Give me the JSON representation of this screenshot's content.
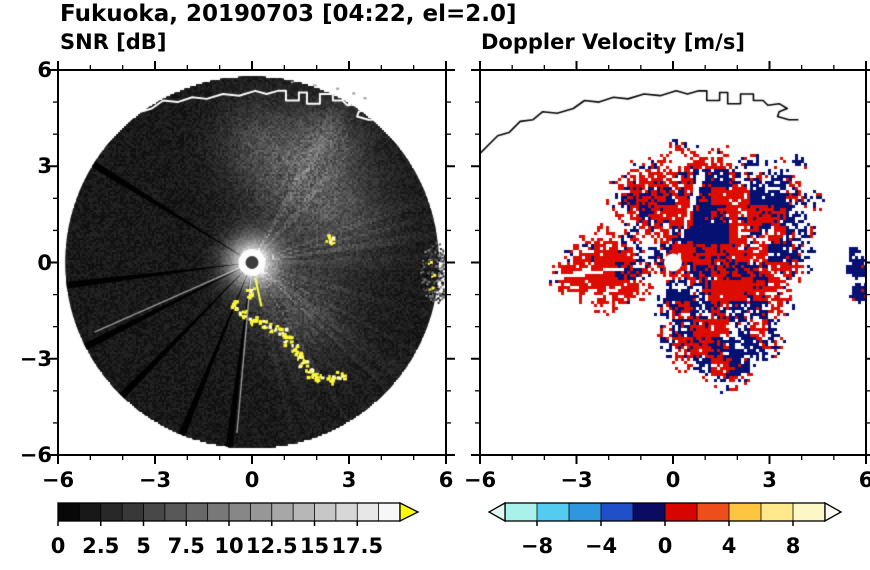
{
  "header": {
    "title": "Fukuoka, 20190703 [04:22, el=2.0]"
  },
  "panels": {
    "snr": {
      "title": "SNR [dB]",
      "x_ticks": {
        "values": [
          -6,
          -3,
          0,
          3,
          6
        ],
        "labels": [
          "−6",
          "−3",
          "0",
          "3",
          "6"
        ]
      },
      "y_ticks": {
        "values": [
          6,
          3,
          0,
          -3,
          -6
        ],
        "labels": [
          "6",
          "3",
          "0",
          "−3",
          "−6"
        ]
      }
    },
    "vel": {
      "title": "Doppler Velocity [m/s]",
      "x_ticks": {
        "values": [
          -6,
          -3,
          0,
          3,
          6
        ],
        "labels": [
          "−6",
          "−3",
          "0",
          "3",
          "6"
        ]
      },
      "y_ticks": {
        "values": [
          6,
          3,
          0,
          -3,
          -6
        ],
        "labels": []
      }
    }
  },
  "colorbars": {
    "snr": {
      "min": 0,
      "max": 20,
      "segments": 16,
      "ticks": {
        "values": [
          0,
          2.5,
          5,
          7.5,
          10,
          12.5,
          15,
          17.5
        ],
        "labels": [
          "0",
          "2.5",
          "5",
          "7.5",
          "10",
          "12.5",
          "15",
          "17.5"
        ]
      },
      "colormap": "grayscale",
      "over_arrow_color": "#ffff00"
    },
    "vel": {
      "min": -10,
      "max": 10,
      "ticks": {
        "values": [
          -8,
          -4,
          0,
          4,
          8
        ],
        "labels": [
          "−8",
          "−4",
          "0",
          "4",
          "8"
        ]
      },
      "segment_colors": [
        "#a9f2ec",
        "#54ccf2",
        "#2f96e0",
        "#2050c8",
        "#0b0b64",
        "#d80400",
        "#ee4e1a",
        "#ffc53e",
        "#ffe98a",
        "#fdf7c8"
      ],
      "under_arrow_color": "#dffaf4",
      "over_arrow_color": "#fffef6"
    }
  },
  "chart_data": [
    {
      "type": "heatmap",
      "title": "SNR [dB]",
      "xlim": [
        -6,
        6
      ],
      "ylim": [
        -6,
        6
      ],
      "x_ticks": [
        -6,
        -3,
        0,
        3,
        6
      ],
      "y_ticks": [
        -6,
        -3,
        0,
        3,
        6
      ],
      "units": "axes in tens of km from radar; SNR in dB",
      "colorbar": {
        "min": 0,
        "max": 20,
        "tick_values": [
          0,
          2.5,
          5,
          7.5,
          10,
          12.5,
          15,
          17.5
        ],
        "colormap": "black-to-white grayscale with yellow overflow arrow"
      },
      "features": [
        "dark PPI scan disc of radius ~5.8 centred on the radar",
        "diffuse bright echo cloud to the NE and E of the radar",
        "bright white core at the radar location with small gray centre dot",
        "dark radial beam-blockage spokes toward the W, SW and S",
        "yellow high-SNR clutter arc SSE of the radar",
        "white coastline overlay across the top of the disc",
        "gray speckle patch with yellow specks at the eastern disc rim"
      ],
      "render": {
        "radius": 5.8,
        "spokes_deg": [
          148,
          187,
          207,
          226,
          248,
          263
        ],
        "bright_rays_deg": [
          204,
          265
        ],
        "yellow_ray": {
          "deg": 282,
          "r0": 0.5,
          "r1": 1.4
        },
        "streak_sector_deg": [
          -80,
          65
        ],
        "clouds": [
          {
            "x": 1.6,
            "y": 2.6,
            "r": 1.7,
            "a": 95
          },
          {
            "x": 0.1,
            "y": 3.9,
            "r": 1.2,
            "a": 50
          },
          {
            "x": 2.3,
            "y": 4.0,
            "r": 1.0,
            "a": 55
          },
          {
            "x": 1.4,
            "y": -1.3,
            "r": 1.6,
            "a": 60
          },
          {
            "x": 3.1,
            "y": 1.2,
            "r": 1.3,
            "a": 45
          }
        ],
        "clutter_points": [
          [
            -0.6,
            -1.3
          ],
          [
            -0.3,
            -1.55
          ],
          [
            0.0,
            -1.75
          ],
          [
            0.3,
            -1.9
          ],
          [
            0.6,
            -2.0
          ],
          [
            0.9,
            -2.15
          ],
          [
            1.1,
            -2.4
          ],
          [
            1.3,
            -2.65
          ],
          [
            1.45,
            -2.9
          ],
          [
            1.55,
            -3.15
          ],
          [
            1.75,
            -3.4
          ],
          [
            2.05,
            -3.55
          ],
          [
            2.4,
            -3.6
          ],
          [
            2.7,
            -3.5
          ],
          [
            2.35,
            0.75
          ],
          [
            -0.1,
            -0.9
          ]
        ],
        "edge_clutter": {
          "center": [
            5.65,
            -0.3
          ],
          "rx": 0.45,
          "ry": 0.95,
          "yellow": [
            [
              5.5,
              0.05
            ],
            [
              5.6,
              -0.35
            ],
            [
              5.55,
              -0.75
            ]
          ]
        },
        "outside_specks": [
          [
            1.9,
            5.55
          ],
          [
            2.6,
            5.45
          ],
          [
            3.1,
            5.3
          ],
          [
            3.45,
            5.15
          ],
          [
            1.2,
            5.65
          ]
        ],
        "coastline": [
          [
            -6.0,
            3.4
          ],
          [
            -5.45,
            3.95
          ],
          [
            -5.1,
            4.05
          ],
          [
            -4.75,
            4.4
          ],
          [
            -4.35,
            4.45
          ],
          [
            -4.05,
            4.7
          ],
          [
            -3.6,
            4.65
          ],
          [
            -3.1,
            4.8
          ],
          [
            -2.75,
            5.05
          ],
          [
            -2.3,
            5.0
          ],
          [
            -1.85,
            5.15
          ],
          [
            -1.4,
            5.1
          ],
          [
            -0.9,
            5.25
          ],
          [
            -0.4,
            5.2
          ],
          [
            0.1,
            5.35
          ],
          [
            0.45,
            5.25
          ],
          [
            0.8,
            5.35
          ],
          [
            1.05,
            5.35
          ],
          [
            1.05,
            5.05
          ],
          [
            1.45,
            5.05
          ],
          [
            1.45,
            5.3
          ],
          [
            1.7,
            5.3
          ],
          [
            1.7,
            4.95
          ],
          [
            2.1,
            4.95
          ],
          [
            2.1,
            5.25
          ],
          [
            2.5,
            5.25
          ],
          [
            2.5,
            5.05
          ],
          [
            2.8,
            5.05
          ],
          [
            2.95,
            4.9
          ],
          [
            3.3,
            4.95
          ],
          [
            3.55,
            4.8
          ],
          [
            3.3,
            4.7
          ],
          [
            3.25,
            4.55
          ],
          [
            3.6,
            4.45
          ],
          [
            3.9,
            4.45
          ]
        ],
        "center_dot": {
          "glow_r": 0.42,
          "dot_r": 0.2,
          "dot_color": "#3c3c3c"
        }
      }
    },
    {
      "type": "heatmap",
      "title": "Doppler Velocity [m/s]",
      "xlim": [
        -6,
        6
      ],
      "ylim": [
        -6,
        6
      ],
      "x_ticks": [
        -6,
        -3,
        0,
        3,
        6
      ],
      "y_ticks": [
        -6,
        -3,
        0,
        3,
        6
      ],
      "units": "axes in tens of km from radar; velocity in m/s",
      "colorbar": {
        "min": -10,
        "max": 10,
        "tick_values": [
          -8,
          -4,
          0,
          4,
          8
        ],
        "colormap": "cyan-blue-navy for negative, red-orange-yellow-white for positive"
      },
      "features": [
        "scattered field of near-zero velocities: red (small positive) and navy (small negative) patches E and S of radar",
        "red-dominant wedge extending W of the radar",
        "navy-dominant cluster on the NE flank of the echo mass",
        "thin white radial gaps from beam blockage",
        "black coastline across the top of the panel",
        "white dot at the radar site",
        "detached navy patches at the eastern panel edge"
      ],
      "render": {
        "echo_colors": {
          "positive": "#dc0c00",
          "negative": "#041173"
        },
        "gap_spokes_deg": [
          135,
          187,
          205,
          225,
          250
        ],
        "gap_wedge": {
          "deg": 72,
          "half_width_deg": 2.2,
          "r0": 0.4,
          "r1": 3.0
        },
        "blob_format": "[x, y, radius, red_fraction, density]",
        "blobs": [
          [
            0.9,
            0.6,
            2.1,
            0.5,
            0.97
          ],
          [
            2.0,
            -0.6,
            2.0,
            0.55,
            0.95
          ],
          [
            1.1,
            1.9,
            1.7,
            0.65,
            0.95
          ],
          [
            -0.6,
            1.9,
            1.5,
            0.7,
            0.9
          ],
          [
            2.9,
            1.6,
            1.5,
            0.3,
            0.9
          ],
          [
            3.3,
            0.3,
            1.2,
            0.45,
            0.85
          ],
          [
            -1.9,
            -0.25,
            1.5,
            0.8,
            0.95
          ],
          [
            -3.0,
            -0.4,
            0.9,
            0.85,
            0.85
          ],
          [
            0.9,
            -2.3,
            1.4,
            0.5,
            0.9
          ],
          [
            1.7,
            -3.2,
            0.9,
            0.5,
            0.85
          ],
          [
            2.6,
            -2.4,
            0.9,
            0.45,
            0.8
          ],
          [
            0.2,
            -1.4,
            0.9,
            0.25,
            0.9
          ],
          [
            0.3,
            3.55,
            0.55,
            0.85,
            0.3
          ],
          [
            1.4,
            3.4,
            0.4,
            0.6,
            0.3
          ],
          [
            2.5,
            3.1,
            0.45,
            0.4,
            0.35
          ],
          [
            3.2,
            2.9,
            0.5,
            0.3,
            0.3
          ],
          [
            3.9,
            3.1,
            0.3,
            0.4,
            0.5
          ],
          [
            4.5,
            1.9,
            0.45,
            0.15,
            0.5
          ],
          [
            4.15,
            0.9,
            0.4,
            0.3,
            0.6
          ],
          [
            5.75,
            -0.15,
            0.42,
            0.02,
            1.2
          ],
          [
            5.85,
            -0.95,
            0.38,
            0.05,
            1.2
          ],
          [
            5.6,
            0.35,
            0.25,
            0.1,
            1.0
          ]
        ],
        "center_dot_r": 0.28
      }
    }
  ]
}
